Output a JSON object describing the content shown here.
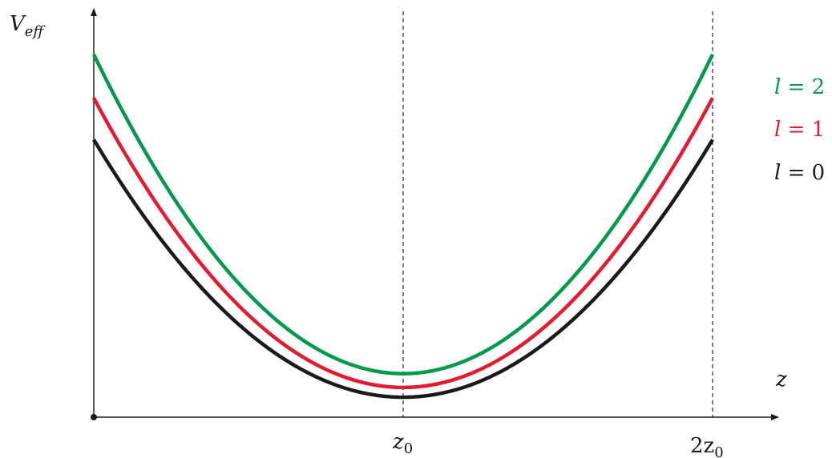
{
  "chart_data": {
    "type": "line",
    "xlabel": "z",
    "ylabel": "V_eff",
    "ylabel_main": "V",
    "ylabel_sub": "eff",
    "xlim": [
      0,
      2
    ],
    "ylim": [
      0,
      1
    ],
    "grid": false,
    "x_ticks": [
      {
        "value": 1,
        "label": "z0",
        "main": "z",
        "sub": "0"
      },
      {
        "value": 2,
        "label": "2z0",
        "main": "2z",
        "sub": "0"
      }
    ],
    "legend_position": "right",
    "series": [
      {
        "name": "l = 2",
        "legend_lhs": "l",
        "legend_rhs": " = 2",
        "color": "#009a4a",
        "min": 0.12,
        "edge": 1.0
      },
      {
        "name": "l = 1",
        "legend_lhs": "l",
        "legend_rhs": " = 1",
        "color": "#e41a2e",
        "min": 0.082,
        "edge": 0.88
      },
      {
        "name": "l = 0",
        "legend_lhs": "l",
        "legend_rhs": " = 0",
        "color": "#1a1a1a",
        "min": 0.055,
        "edge": 0.765
      }
    ]
  }
}
